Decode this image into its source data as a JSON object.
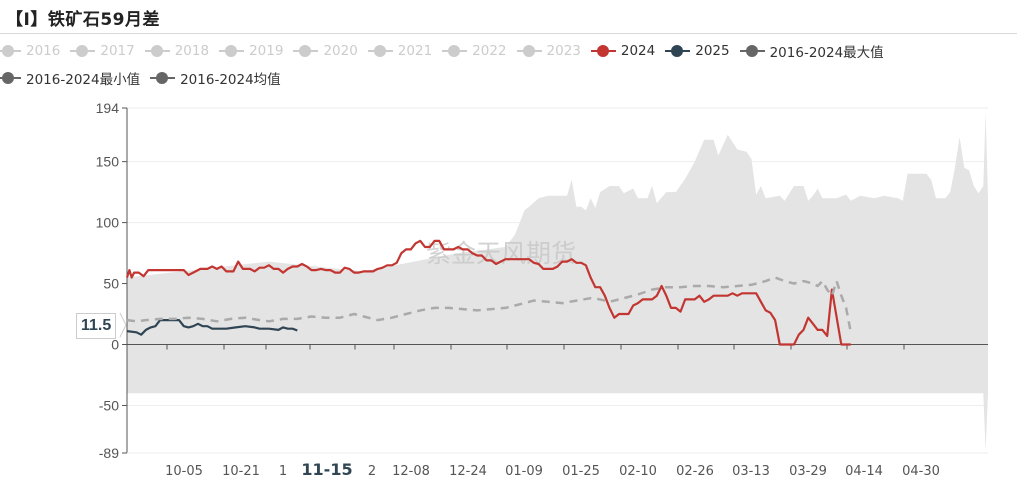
{
  "title": "【I】铁矿石59月差",
  "legend": {
    "row1": [
      {
        "label": "2016",
        "color": "#cccccc",
        "active": false
      },
      {
        "label": "2017",
        "color": "#cccccc",
        "active": false
      },
      {
        "label": "2018",
        "color": "#cccccc",
        "active": false
      },
      {
        "label": "2019",
        "color": "#cccccc",
        "active": false
      },
      {
        "label": "2020",
        "color": "#cccccc",
        "active": false
      },
      {
        "label": "2021",
        "color": "#cccccc",
        "active": false
      },
      {
        "label": "2022",
        "color": "#cccccc",
        "active": false
      },
      {
        "label": "2023",
        "color": "#cccccc",
        "active": false
      },
      {
        "label": "2024",
        "color": "#c23531",
        "active": true
      },
      {
        "label": "2025",
        "color": "#2f4554",
        "active": true
      },
      {
        "label": "2016-2024最大值",
        "color": "#666666",
        "active": true
      }
    ],
    "row2": [
      {
        "label": "2016-2024最小值",
        "color": "#666666",
        "active": true
      },
      {
        "label": "2016-2024均值",
        "color": "#666666",
        "active": true
      }
    ]
  },
  "watermark": "紫金天风期货",
  "y_pointer_label": "11.5",
  "chart_data": {
    "type": "line",
    "title": "【I】铁矿石59月差",
    "xlabel": "",
    "ylabel": "",
    "ylim": [
      -89,
      194
    ],
    "y_ticks": [
      -89,
      -50,
      0,
      50,
      100,
      150,
      194
    ],
    "x_ticks": [
      "10-05",
      "10-21",
      "1",
      "11-15",
      "2",
      "12-08",
      "12-24",
      "01-09",
      "01-25",
      "02-10",
      "02-26",
      "03-13",
      "03-29",
      "04-14",
      "04-30"
    ],
    "x_active_label": "11-15",
    "grid": true,
    "legend_position": "top",
    "x_range": [
      "09-20",
      "05-20"
    ],
    "series": [
      {
        "name": "2024",
        "color": "#c23531",
        "style": "solid",
        "points": [
          [
            0,
            55
          ],
          [
            1,
            61
          ],
          [
            2,
            55
          ],
          [
            3,
            59
          ],
          [
            5,
            59
          ],
          [
            7,
            56
          ],
          [
            9,
            61
          ],
          [
            24,
            61
          ],
          [
            26,
            57
          ],
          [
            29,
            60
          ],
          [
            31,
            62
          ],
          [
            34,
            62
          ],
          [
            36,
            64
          ],
          [
            38,
            62
          ],
          [
            40,
            64
          ],
          [
            42,
            60
          ],
          [
            45,
            60
          ],
          [
            47,
            68
          ],
          [
            49,
            62
          ],
          [
            52,
            62
          ],
          [
            54,
            60
          ],
          [
            56,
            63
          ],
          [
            58,
            63
          ],
          [
            60,
            65
          ],
          [
            62,
            62
          ],
          [
            64,
            62
          ],
          [
            66,
            59
          ],
          [
            68,
            62
          ],
          [
            70,
            64
          ],
          [
            72,
            64
          ],
          [
            74,
            66
          ],
          [
            76,
            64
          ],
          [
            78,
            61
          ],
          [
            80,
            61
          ],
          [
            82,
            62
          ],
          [
            84,
            61
          ],
          [
            86,
            61
          ],
          [
            88,
            59
          ],
          [
            90,
            59
          ],
          [
            92,
            63
          ],
          [
            94,
            62
          ],
          [
            96,
            59
          ],
          [
            98,
            59
          ],
          [
            100,
            60
          ],
          [
            104,
            60
          ],
          [
            106,
            62
          ],
          [
            108,
            63
          ],
          [
            110,
            65
          ],
          [
            112,
            65
          ],
          [
            114,
            67
          ],
          [
            116,
            75
          ],
          [
            118,
            78
          ],
          [
            120,
            78
          ],
          [
            122,
            83
          ],
          [
            124,
            85
          ],
          [
            126,
            80
          ],
          [
            128,
            80
          ],
          [
            130,
            85
          ],
          [
            132,
            85
          ],
          [
            134,
            78
          ],
          [
            136,
            78
          ],
          [
            138,
            78
          ],
          [
            140,
            80
          ],
          [
            142,
            78
          ],
          [
            144,
            78
          ],
          [
            146,
            75
          ],
          [
            148,
            73
          ],
          [
            150,
            73
          ],
          [
            152,
            69
          ],
          [
            154,
            69
          ],
          [
            156,
            66
          ],
          [
            158,
            68
          ],
          [
            160,
            70
          ],
          [
            170,
            70
          ],
          [
            172,
            67
          ],
          [
            174,
            66
          ],
          [
            176,
            62
          ],
          [
            178,
            62
          ],
          [
            180,
            62
          ],
          [
            182,
            64
          ],
          [
            184,
            68
          ],
          [
            186,
            68
          ],
          [
            188,
            70
          ],
          [
            190,
            67
          ],
          [
            192,
            67
          ],
          [
            194,
            65
          ],
          [
            196,
            55
          ],
          [
            198,
            47
          ],
          [
            200,
            47
          ],
          [
            202,
            40
          ],
          [
            204,
            30
          ],
          [
            206,
            22
          ],
          [
            208,
            25
          ],
          [
            212,
            25
          ],
          [
            214,
            32
          ],
          [
            216,
            34
          ],
          [
            218,
            37
          ],
          [
            220,
            37
          ],
          [
            222,
            37
          ],
          [
            224,
            40
          ],
          [
            226,
            48
          ],
          [
            228,
            40
          ],
          [
            230,
            30
          ],
          [
            232,
            30
          ],
          [
            234,
            27
          ],
          [
            236,
            37
          ],
          [
            240,
            37
          ],
          [
            242,
            40
          ],
          [
            244,
            35
          ],
          [
            246,
            37
          ],
          [
            248,
            40
          ],
          [
            254,
            40
          ],
          [
            256,
            42
          ],
          [
            258,
            40
          ],
          [
            260,
            42
          ],
          [
            266,
            42
          ],
          [
            268,
            35
          ],
          [
            270,
            28
          ],
          [
            272,
            26
          ],
          [
            274,
            20
          ],
          [
            276,
            0
          ],
          [
            282,
            0
          ],
          [
            284,
            8
          ],
          [
            286,
            12
          ],
          [
            288,
            22
          ],
          [
            290,
            17
          ],
          [
            292,
            12
          ],
          [
            294,
            12
          ],
          [
            296,
            7
          ],
          [
            298,
            45
          ],
          [
            302,
            0
          ],
          [
            306,
            0
          ]
        ]
      },
      {
        "name": "2025",
        "color": "#2f4554",
        "style": "solid",
        "points": [
          [
            0,
            11
          ],
          [
            4,
            10
          ],
          [
            6,
            8
          ],
          [
            8,
            12
          ],
          [
            10,
            14
          ],
          [
            12,
            15
          ],
          [
            14,
            20
          ],
          [
            22,
            20
          ],
          [
            24,
            15
          ],
          [
            26,
            14
          ],
          [
            28,
            15
          ],
          [
            30,
            17
          ],
          [
            32,
            15
          ],
          [
            34,
            15
          ],
          [
            36,
            13
          ],
          [
            42,
            13
          ],
          [
            46,
            14
          ],
          [
            50,
            15
          ],
          [
            54,
            14
          ],
          [
            56,
            13
          ],
          [
            60,
            13
          ],
          [
            64,
            12
          ],
          [
            66,
            14
          ],
          [
            68,
            13
          ],
          [
            70,
            13
          ],
          [
            72,
            11.5
          ]
        ]
      },
      {
        "name": "2016-2024均值",
        "color": "#aaaaaa",
        "style": "dashed",
        "points": [
          [
            0,
            20
          ],
          [
            4,
            19
          ],
          [
            8,
            20
          ],
          [
            14,
            21
          ],
          [
            20,
            21
          ],
          [
            26,
            22
          ],
          [
            32,
            21
          ],
          [
            38,
            19
          ],
          [
            44,
            21
          ],
          [
            50,
            22
          ],
          [
            56,
            20
          ],
          [
            60,
            19
          ],
          [
            66,
            21
          ],
          [
            72,
            21
          ],
          [
            78,
            23
          ],
          [
            84,
            22
          ],
          [
            90,
            22
          ],
          [
            96,
            25
          ],
          [
            102,
            22
          ],
          [
            106,
            20
          ],
          [
            112,
            22
          ],
          [
            118,
            25
          ],
          [
            124,
            28
          ],
          [
            130,
            30
          ],
          [
            136,
            30
          ],
          [
            142,
            29
          ],
          [
            148,
            28
          ],
          [
            154,
            29
          ],
          [
            160,
            30
          ],
          [
            166,
            33
          ],
          [
            172,
            36
          ],
          [
            178,
            35
          ],
          [
            184,
            34
          ],
          [
            190,
            36
          ],
          [
            196,
            38
          ],
          [
            200,
            37
          ],
          [
            204,
            35
          ],
          [
            210,
            38
          ],
          [
            216,
            41
          ],
          [
            222,
            45
          ],
          [
            228,
            47
          ],
          [
            234,
            47
          ],
          [
            240,
            48
          ],
          [
            246,
            48
          ],
          [
            252,
            47
          ],
          [
            258,
            48
          ],
          [
            264,
            49
          ],
          [
            270,
            52
          ],
          [
            274,
            55
          ],
          [
            278,
            52
          ],
          [
            282,
            50
          ],
          [
            286,
            52
          ],
          [
            290,
            50
          ],
          [
            292,
            48
          ],
          [
            294,
            52
          ],
          [
            296,
            45
          ],
          [
            298,
            40
          ],
          [
            300,
            52
          ],
          [
            302,
            40
          ],
          [
            304,
            30
          ],
          [
            306,
            10
          ]
        ]
      },
      {
        "name": "2016-2024最大值",
        "color": "#e4e4e4",
        "style": "area-upper",
        "points": [
          [
            0,
            55
          ],
          [
            60,
            68
          ],
          [
            100,
            60
          ],
          [
            140,
            75
          ],
          [
            160,
            80
          ],
          [
            164,
            90
          ],
          [
            166,
            100
          ],
          [
            168,
            110
          ],
          [
            170,
            113
          ],
          [
            174,
            120
          ],
          [
            178,
            122
          ],
          [
            186,
            122
          ],
          [
            188,
            135
          ],
          [
            190,
            113
          ],
          [
            192,
            113
          ],
          [
            194,
            110
          ],
          [
            196,
            120
          ],
          [
            198,
            112
          ],
          [
            200,
            125
          ],
          [
            204,
            130
          ],
          [
            208,
            130
          ],
          [
            210,
            124
          ],
          [
            212,
            126
          ],
          [
            214,
            128
          ],
          [
            216,
            120
          ],
          [
            220,
            120
          ],
          [
            222,
            130
          ],
          [
            224,
            116
          ],
          [
            228,
            125
          ],
          [
            232,
            125
          ],
          [
            236,
            136
          ],
          [
            240,
            150
          ],
          [
            244,
            168
          ],
          [
            248,
            168
          ],
          [
            250,
            155
          ],
          [
            254,
            172
          ],
          [
            258,
            160
          ],
          [
            262,
            158
          ],
          [
            264,
            152
          ],
          [
            266,
            123
          ],
          [
            268,
            130
          ],
          [
            270,
            120
          ],
          [
            276,
            122
          ],
          [
            278,
            118
          ],
          [
            282,
            130
          ],
          [
            286,
            130
          ],
          [
            288,
            118
          ],
          [
            290,
            122
          ],
          [
            292,
            128
          ],
          [
            294,
            120
          ],
          [
            300,
            120
          ],
          [
            304,
            123
          ],
          [
            306,
            118
          ],
          [
            310,
            122
          ],
          [
            316,
            120
          ],
          [
            320,
            122
          ],
          [
            326,
            120
          ],
          [
            328,
            118
          ],
          [
            330,
            140
          ],
          [
            334,
            140
          ],
          [
            338,
            140
          ],
          [
            340,
            135
          ],
          [
            342,
            120
          ],
          [
            346,
            120
          ],
          [
            348,
            125
          ],
          [
            350,
            145
          ],
          [
            352,
            170
          ],
          [
            354,
            145
          ],
          [
            356,
            143
          ],
          [
            358,
            130
          ],
          [
            360,
            124
          ],
          [
            362,
            130
          ],
          [
            363,
            190
          ],
          [
            364,
            120
          ]
        ]
      },
      {
        "name": "2016-2024最小值",
        "color": "#e4e4e4",
        "style": "area-lower",
        "points": [
          [
            0,
            -40
          ],
          [
            362,
            -40
          ],
          [
            363,
            -87
          ],
          [
            364,
            -40
          ]
        ]
      }
    ]
  }
}
